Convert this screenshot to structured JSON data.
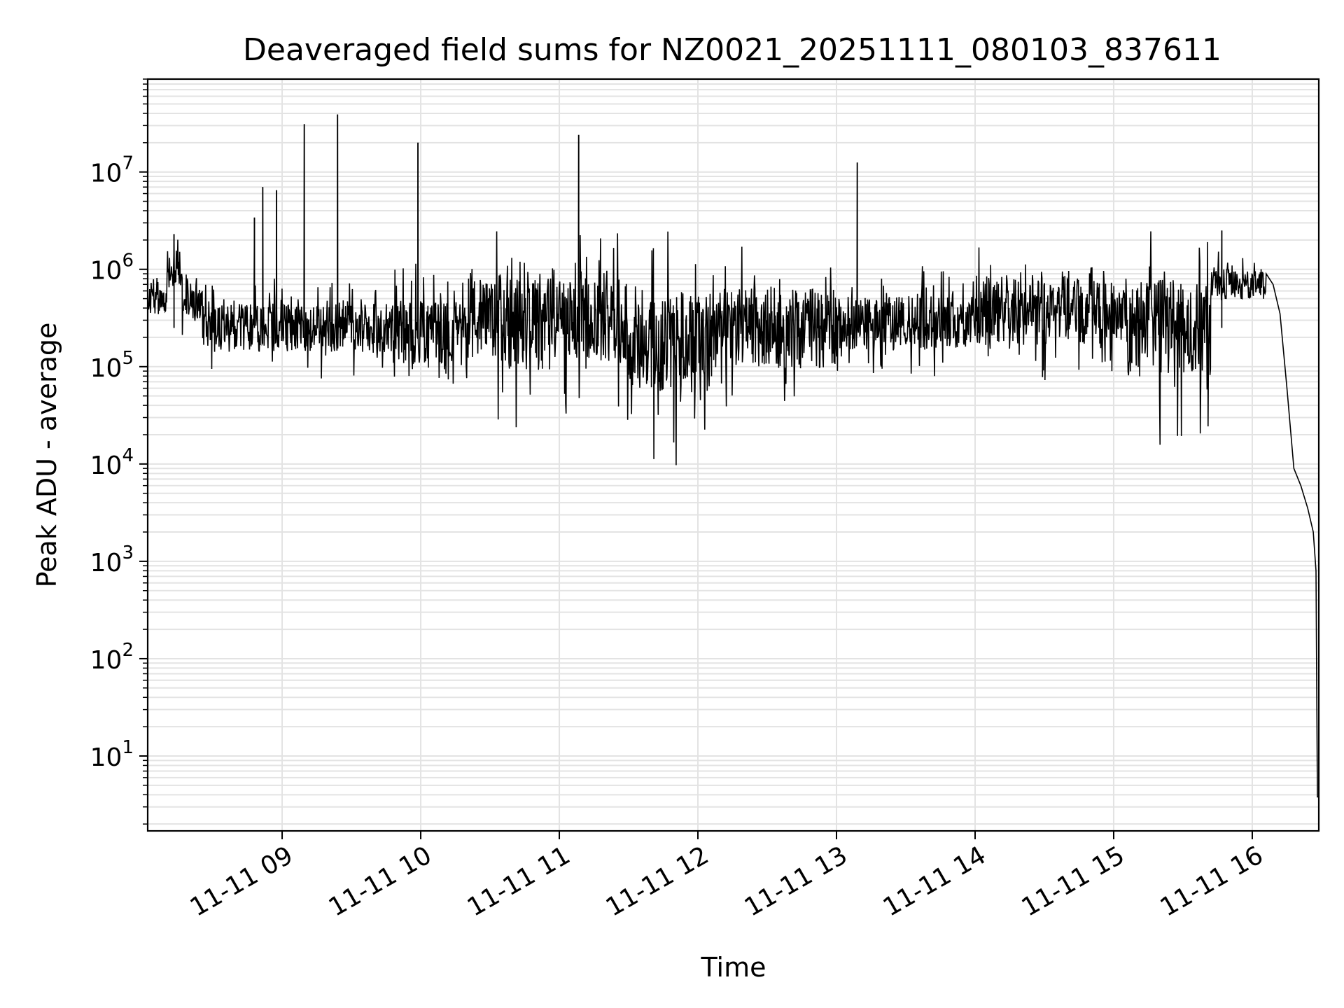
{
  "chart_data": {
    "type": "line",
    "title": "Deaveraged field sums for NZ0021_20251111_080103_837611",
    "xlabel": "Time",
    "ylabel": "Peak ADU - average",
    "yscale": "log",
    "ylim": [
      1.7,
      90000000
    ],
    "xlim_hours": [
      8.03,
      16.48
    ],
    "grid": true,
    "x_ticks": [
      {
        "hour": 9,
        "label": "11-11 09"
      },
      {
        "hour": 10,
        "label": "11-11 10"
      },
      {
        "hour": 11,
        "label": "11-11 11"
      },
      {
        "hour": 12,
        "label": "11-11 12"
      },
      {
        "hour": 13,
        "label": "11-11 13"
      },
      {
        "hour": 14,
        "label": "11-11 14"
      },
      {
        "hour": 15,
        "label": "11-11 15"
      },
      {
        "hour": 16,
        "label": "11-11 16"
      }
    ],
    "y_ticks": [
      {
        "exp": 1,
        "base": "10",
        "sup": "1"
      },
      {
        "exp": 2,
        "base": "10",
        "sup": "2"
      },
      {
        "exp": 3,
        "base": "10",
        "sup": "3"
      },
      {
        "exp": 4,
        "base": "10",
        "sup": "4"
      },
      {
        "exp": 5,
        "base": "10",
        "sup": "5"
      },
      {
        "exp": 6,
        "base": "10",
        "sup": "6"
      },
      {
        "exp": 7,
        "base": "10",
        "sup": "7"
      }
    ],
    "series": [
      {
        "name": "Peak ADU - average",
        "color": "#000000",
        "segments": [
          {
            "start": 8.03,
            "end": 8.17,
            "level": 450000,
            "spread": 0.25,
            "lowdip": 0
          },
          {
            "start": 8.17,
            "end": 8.28,
            "level": 1000000,
            "spread": 0.35,
            "lowdip": 0
          },
          {
            "start": 8.28,
            "end": 8.45,
            "level": 450000,
            "spread": 0.35,
            "lowdip": 0.2
          },
          {
            "start": 8.45,
            "end": 9.8,
            "level": 250000,
            "spread": 0.45,
            "lowdip": 0.25
          },
          {
            "start": 9.8,
            "end": 10.3,
            "level": 220000,
            "spread": 0.6,
            "lowdip": 0.3
          },
          {
            "start": 10.3,
            "end": 11.5,
            "level": 300000,
            "spread": 0.8,
            "lowdip": 0.35
          },
          {
            "start": 11.5,
            "end": 12.1,
            "level": 180000,
            "spread": 0.95,
            "lowdip": 0.45
          },
          {
            "start": 12.1,
            "end": 13.0,
            "level": 250000,
            "spread": 0.75,
            "lowdip": 0.35
          },
          {
            "start": 13.0,
            "end": 14.0,
            "level": 280000,
            "spread": 0.5,
            "lowdip": 0.3
          },
          {
            "start": 14.0,
            "end": 15.1,
            "level": 380000,
            "spread": 0.65,
            "lowdip": 0.35
          },
          {
            "start": 15.1,
            "end": 15.7,
            "level": 250000,
            "spread": 0.9,
            "lowdip": 0.5
          },
          {
            "start": 15.7,
            "end": 16.1,
            "level": 700000,
            "spread": 0.3,
            "lowdip": 0.1
          }
        ],
        "decay": [
          {
            "hour": 16.1,
            "value": 900000
          },
          {
            "hour": 16.15,
            "value": 700000
          },
          {
            "hour": 16.2,
            "value": 350000
          },
          {
            "hour": 16.25,
            "value": 60000
          },
          {
            "hour": 16.3,
            "value": 9000
          },
          {
            "hour": 16.35,
            "value": 6000
          },
          {
            "hour": 16.4,
            "value": 3500
          },
          {
            "hour": 16.44,
            "value": 2000
          },
          {
            "hour": 16.46,
            "value": 800
          },
          {
            "hour": 16.47,
            "value": 3.8
          },
          {
            "hour": 16.48,
            "value": 3.8
          }
        ],
        "spikes": [
          {
            "hour": 8.22,
            "value": 2300000
          },
          {
            "hour": 8.8,
            "value": 3400000
          },
          {
            "hour": 8.86,
            "value": 7000000
          },
          {
            "hour": 8.96,
            "value": 6500000
          },
          {
            "hour": 9.16,
            "value": 31000000
          },
          {
            "hour": 9.4,
            "value": 39000000
          },
          {
            "hour": 9.98,
            "value": 20000000
          },
          {
            "hour": 11.14,
            "value": 24000000
          },
          {
            "hour": 13.15,
            "value": 12500000
          },
          {
            "hour": 15.78,
            "value": 2500000
          }
        ]
      }
    ]
  }
}
